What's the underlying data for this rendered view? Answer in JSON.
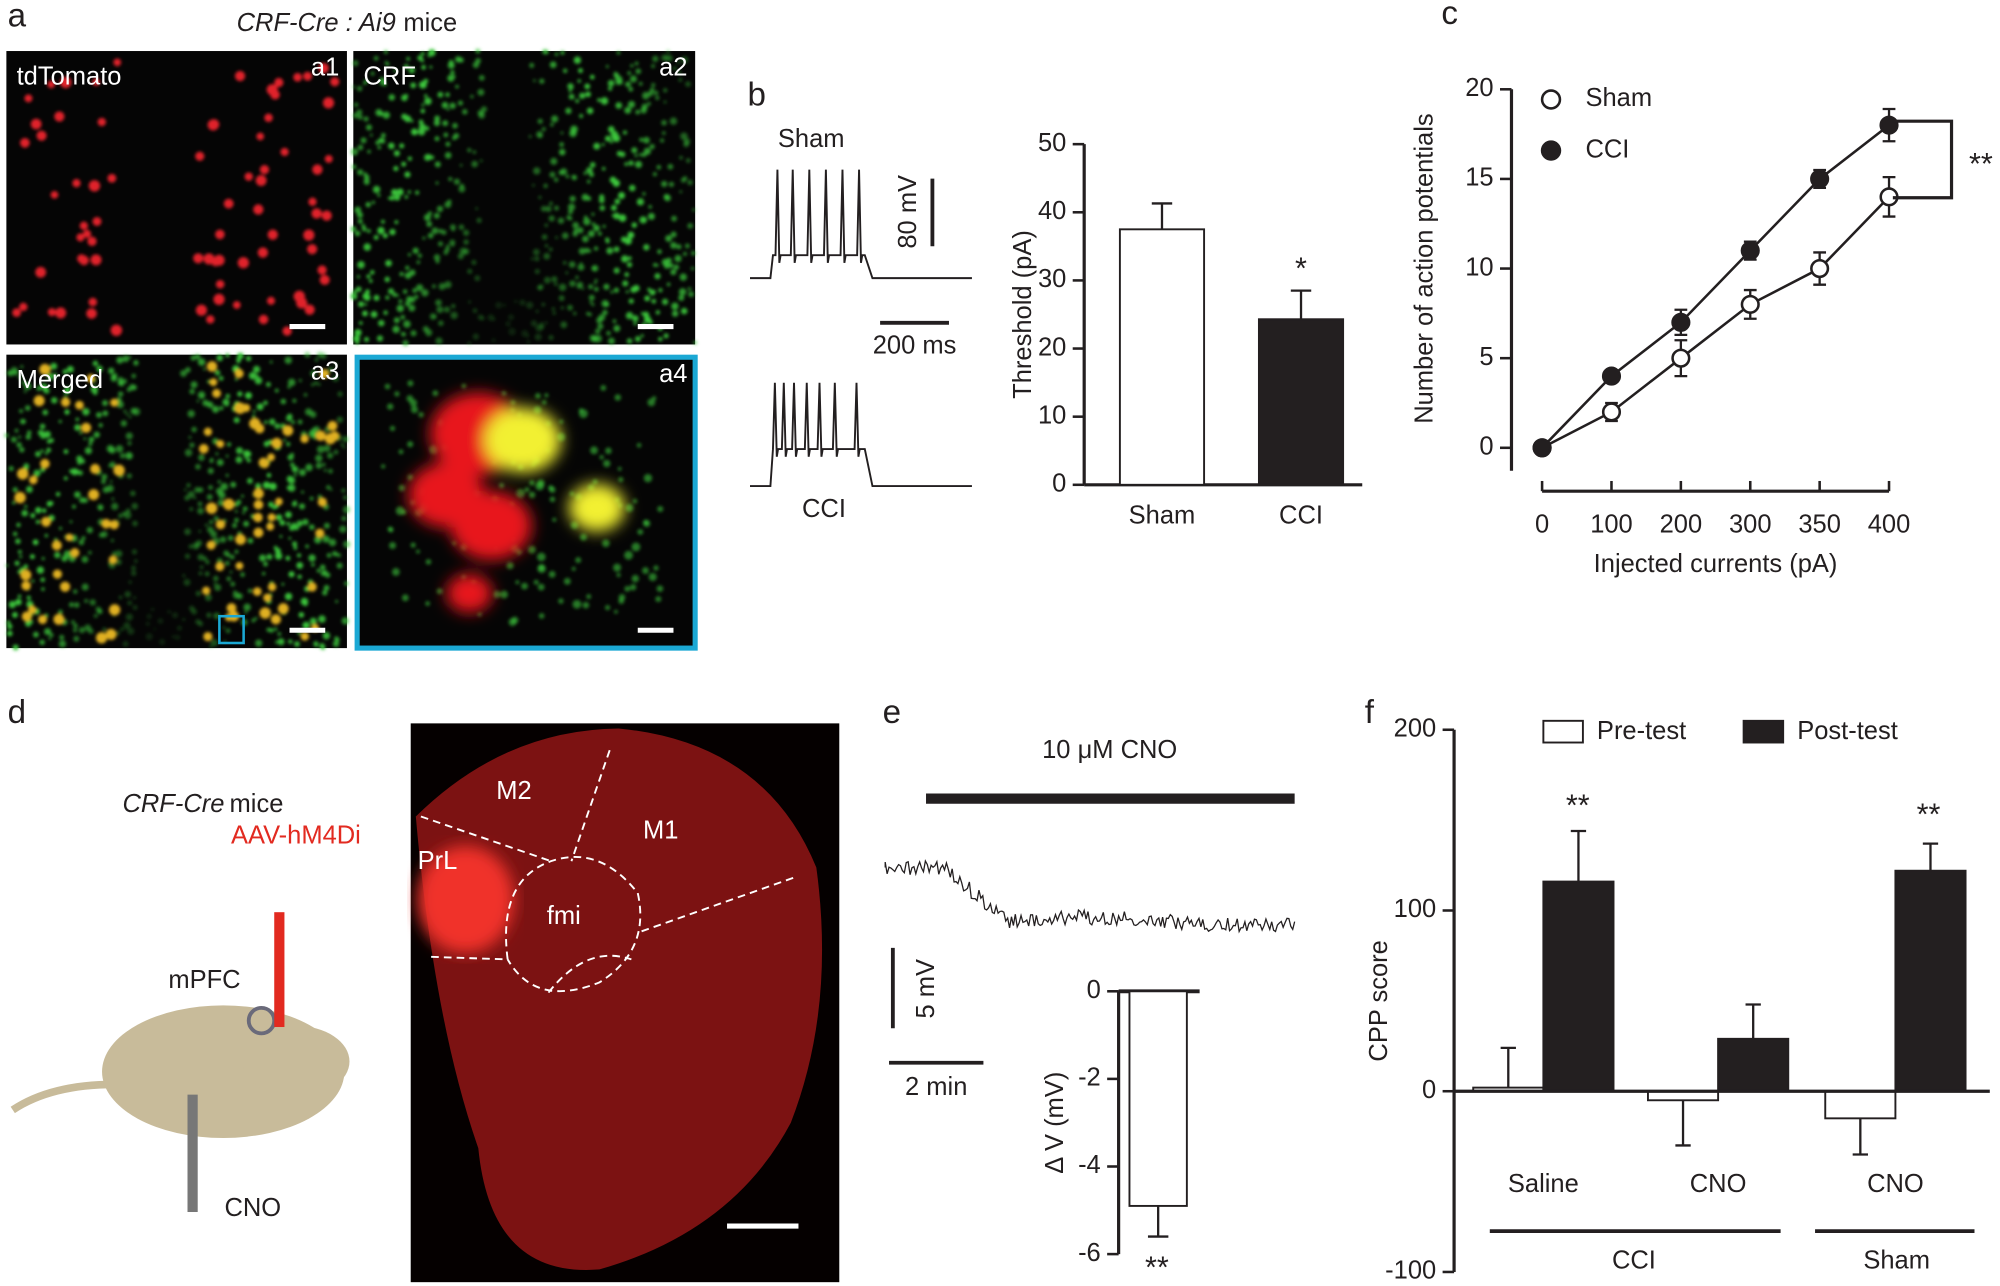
{
  "figure": {
    "panel_labels": [
      "a",
      "b",
      "c",
      "d",
      "e",
      "f"
    ],
    "a": {
      "title_italic": "CRF-Cre : Ai9",
      "title_rest": "mice",
      "images": [
        {
          "label": "tdTomato",
          "tag": "a1"
        },
        {
          "label": "CRF",
          "tag": "a2"
        },
        {
          "label": "Merged",
          "tag": "a3"
        },
        {
          "tag": "a4"
        }
      ]
    },
    "b": {
      "traces": [
        "Sham",
        "CCI"
      ],
      "scale_v": "80 mV",
      "scale_t": "200 ms"
    },
    "d": {
      "title_italic": "CRF-Cre",
      "title_rest": "mice",
      "virus": "AAV-hM4Di",
      "region": "mPFC",
      "drug": "CNO",
      "brain_labels": [
        "M2",
        "M1",
        "PrL",
        "fmi"
      ]
    },
    "e": {
      "drug_bar": "10 μM CNO",
      "scale_v": "5 mV",
      "scale_t": "2 min"
    }
  },
  "chart_data": [
    {
      "type": "bar",
      "categories": [
        "Sham",
        "CCI"
      ],
      "values": [
        37.5,
        24.3
      ],
      "errors": [
        3.8,
        4.2
      ],
      "colors": [
        "#ffffff",
        "#231f20"
      ],
      "ylabel": "Threshold (pA)",
      "ylim": [
        0,
        50
      ],
      "yticks": [
        0,
        10,
        20,
        30,
        40,
        50
      ],
      "annotations": [
        "*"
      ]
    },
    {
      "type": "line",
      "categories": [
        "0",
        "100",
        "200",
        "300",
        "350",
        "400"
      ],
      "series": [
        {
          "name": "Sham",
          "color": "#ffffff",
          "values": [
            0,
            2,
            5,
            8,
            10,
            14
          ],
          "errors": [
            0,
            0.5,
            1,
            0.8,
            0.9,
            1.1
          ]
        },
        {
          "name": "CCI",
          "color": "#231f20",
          "values": [
            0,
            4,
            7,
            11,
            15,
            18
          ],
          "errors": [
            0,
            0.3,
            0.7,
            0.5,
            0.5,
            0.9
          ]
        }
      ],
      "xlabel": "Injected currents (pA)",
      "ylabel": "Number of action potentials",
      "ylim": [
        0,
        20
      ],
      "yticks": [
        0,
        5,
        10,
        15,
        20
      ],
      "annotations": [
        "**"
      ]
    },
    {
      "type": "bar",
      "values": [
        -4.9
      ],
      "errors": [
        0.7
      ],
      "colors": [
        "#ffffff"
      ],
      "ylabel": "Δ V (mV)",
      "ylim": [
        -6,
        0
      ],
      "yticks": [
        0,
        -2,
        -4,
        -6
      ],
      "annotations": [
        "**"
      ]
    },
    {
      "type": "grouped_bar",
      "categories": [
        "Saline",
        "CNO",
        "CNO"
      ],
      "group_labels": [
        "CCI",
        "Sham"
      ],
      "series": [
        {
          "name": "Pre-test",
          "color": "#ffffff",
          "values": [
            2,
            -5,
            -15
          ],
          "errors": [
            22,
            25,
            20
          ]
        },
        {
          "name": "Post-test",
          "color": "#231f20",
          "values": [
            116,
            29,
            122
          ],
          "errors": [
            28,
            19,
            15
          ]
        }
      ],
      "ylabel": "CPP score",
      "ylim": [
        -100,
        200
      ],
      "yticks": [
        -100,
        0,
        100,
        200
      ],
      "annotations": [
        "**",
        "**"
      ]
    }
  ]
}
